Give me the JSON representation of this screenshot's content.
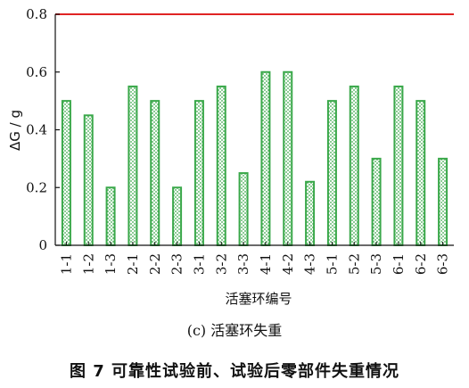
{
  "chart_data": {
    "type": "bar",
    "categories": [
      "1-1",
      "1-2",
      "1-3",
      "2-1",
      "2-2",
      "2-3",
      "3-1",
      "3-2",
      "3-3",
      "4-1",
      "4-2",
      "4-3",
      "5-1",
      "5-2",
      "5-3",
      "6-1",
      "6-2",
      "6-3"
    ],
    "values": [
      0.5,
      0.45,
      0.2,
      0.55,
      0.5,
      0.2,
      0.5,
      0.55,
      0.25,
      0.6,
      0.6,
      0.22,
      0.5,
      0.55,
      0.3,
      0.55,
      0.5,
      0.3
    ],
    "xlabel": "活塞环编号",
    "ylabel": "ΔG / g",
    "ylim": [
      0,
      0.8
    ],
    "yticks": [
      0,
      0.2,
      0.4,
      0.6,
      0.8
    ],
    "ytick_labels": [
      "0",
      "0.2",
      "0.4",
      "0.6",
      "0.8"
    ],
    "reference_line": {
      "value": 0.8,
      "color": "#e02424"
    },
    "bar_color": "#3aa84a",
    "grid": false
  },
  "captions": {
    "subfigure": "(c) 活塞环失重",
    "figure": "图 7 可靠性试验前、试验后零部件失重情况"
  }
}
